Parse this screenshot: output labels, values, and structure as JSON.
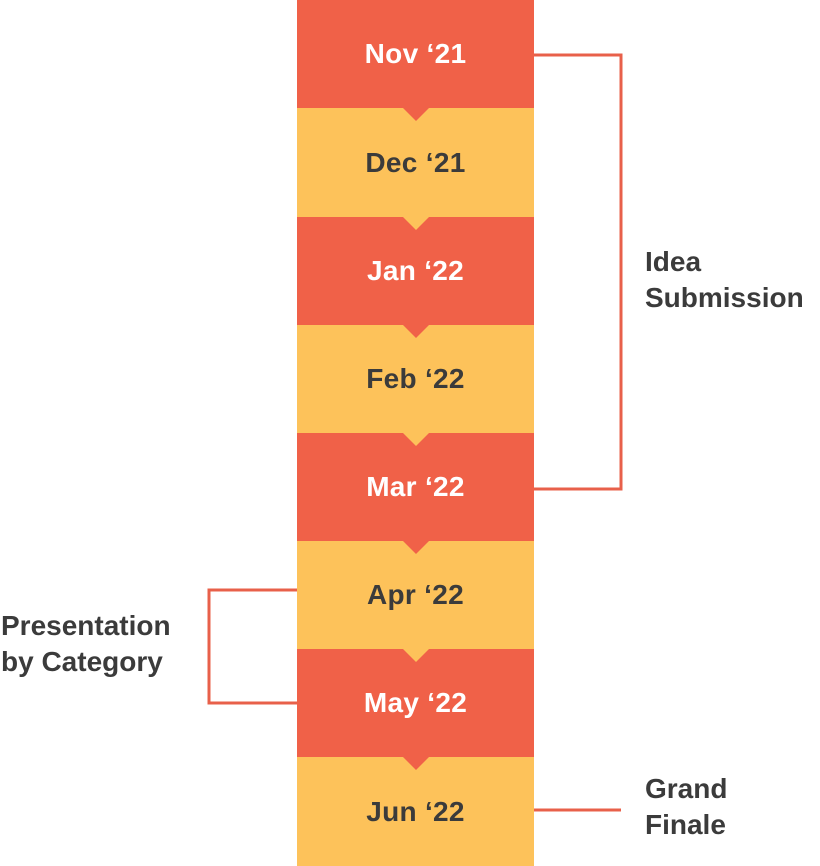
{
  "timeline": {
    "steps": [
      {
        "label": "Nov ‘21",
        "color": "#f06148"
      },
      {
        "label": "Dec ‘21",
        "color": "#fdc25a"
      },
      {
        "label": "Jan ‘22",
        "color": "#f06148"
      },
      {
        "label": "Feb ‘22",
        "color": "#fdc25a"
      },
      {
        "label": "Mar ‘22",
        "color": "#f06148"
      },
      {
        "label": "Apr ‘22",
        "color": "#fdc25a"
      },
      {
        "label": "May ‘22",
        "color": "#f06148"
      },
      {
        "label": "Jun ‘22",
        "color": "#fdc25a"
      }
    ]
  },
  "phases": {
    "idea_submission": {
      "label": "Idea\nSubmission",
      "from": "Nov ‘21",
      "to": "Mar ‘22"
    },
    "presentation": {
      "label": "Presentation\nby Category",
      "from": "Apr ‘22",
      "to": "May ‘22"
    },
    "grand_finale": {
      "label": "Grand\nFinale",
      "at": "Jun ‘22"
    }
  },
  "colors": {
    "red": "#f06148",
    "yellow": "#fdc25a",
    "bracket": "#e8604a",
    "text_dark": "#3b3b3b"
  }
}
